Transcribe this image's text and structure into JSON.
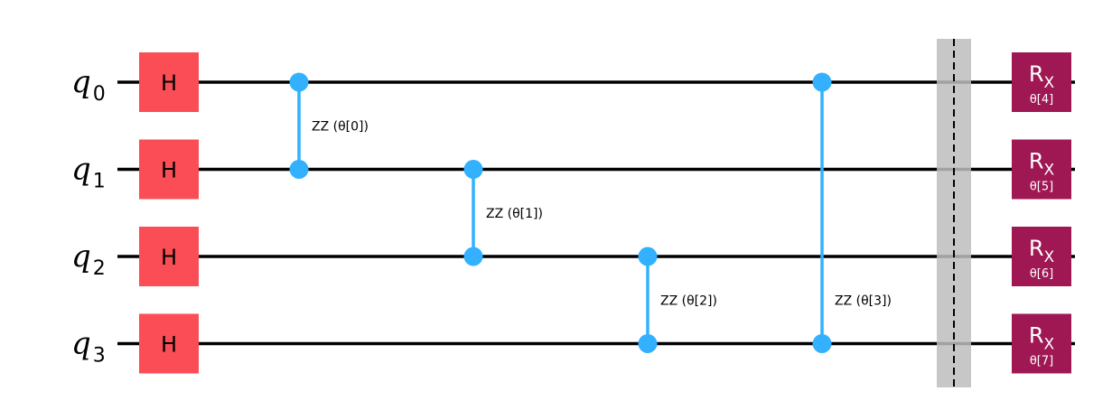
{
  "colors": {
    "wire": "#000000",
    "h_gate": "#fa4d56",
    "rx_gate": "#9f1853",
    "zz": "#33b1ff",
    "barrier": "#bdbdbd"
  },
  "qubits": [
    {
      "letter": "q",
      "index": "0"
    },
    {
      "letter": "q",
      "index": "1"
    },
    {
      "letter": "q",
      "index": "2"
    },
    {
      "letter": "q",
      "index": "3"
    }
  ],
  "h_gate_label": "H",
  "zz_gates": [
    {
      "control": 0,
      "target": 1,
      "label": "ZZ (θ[0])"
    },
    {
      "control": 1,
      "target": 2,
      "label": "ZZ (θ[1])"
    },
    {
      "control": 2,
      "target": 3,
      "label": "ZZ (θ[2])"
    },
    {
      "control": 0,
      "target": 3,
      "label": "ZZ (θ[3])"
    }
  ],
  "rx_gates": [
    {
      "name": "R",
      "sub": "X",
      "param": "θ[4]"
    },
    {
      "name": "R",
      "sub": "X",
      "param": "θ[5]"
    },
    {
      "name": "R",
      "sub": "X",
      "param": "θ[6]"
    },
    {
      "name": "R",
      "sub": "X",
      "param": "θ[7]"
    }
  ]
}
